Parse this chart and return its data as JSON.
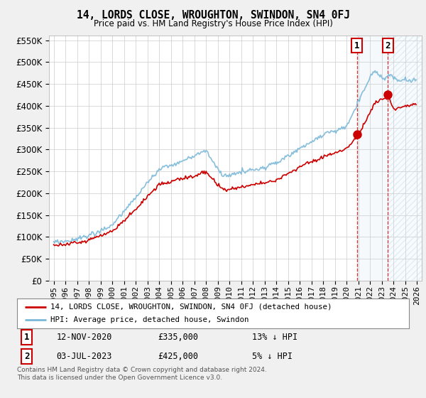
{
  "title": "14, LORDS CLOSE, WROUGHTON, SWINDON, SN4 0FJ",
  "subtitle": "Price paid vs. HM Land Registry's House Price Index (HPI)",
  "legend_line1": "14, LORDS CLOSE, WROUGHTON, SWINDON, SN4 0FJ (detached house)",
  "legend_line2": "HPI: Average price, detached house, Swindon",
  "annotation1_date": "12-NOV-2020",
  "annotation1_price": "£335,000",
  "annotation1_hpi": "13% ↓ HPI",
  "annotation2_date": "03-JUL-2023",
  "annotation2_price": "£425,000",
  "annotation2_hpi": "5% ↓ HPI",
  "footer": "Contains HM Land Registry data © Crown copyright and database right 2024.\nThis data is licensed under the Open Government Licence v3.0.",
  "hpi_color": "#7ab8d9",
  "price_color": "#cc0000",
  "sale1_x": 2020.87,
  "sale1_y": 335000,
  "sale2_x": 2023.5,
  "sale2_y": 425000,
  "ylim": [
    0,
    560000
  ],
  "xlim_start": 1994.6,
  "xlim_end": 2026.4,
  "background_color": "#f0f0f0",
  "plot_bg_color": "#ffffff"
}
